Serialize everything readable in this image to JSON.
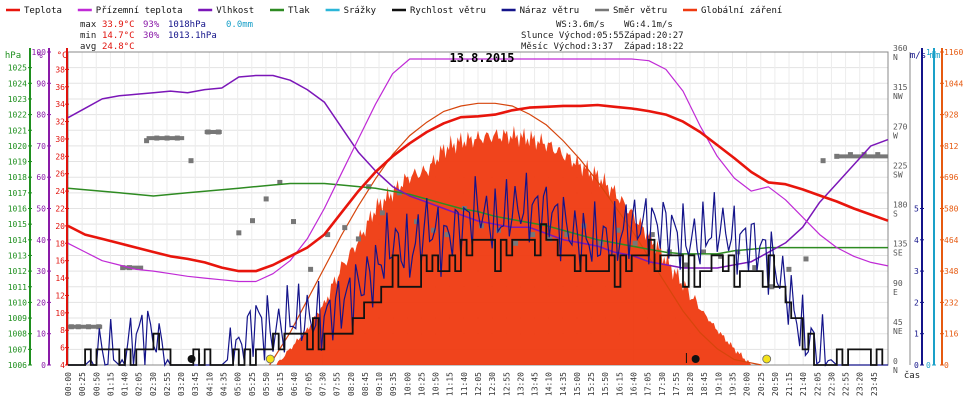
{
  "colors": {
    "temp": "#e8150c",
    "feels": "#c02ad6",
    "humidity": "#7b16b8",
    "pressure": "#2e8b22",
    "precip": "#2bb6d8",
    "wind": "#111111",
    "gust": "#14148a",
    "direction": "#777777",
    "radiation": "#ef3a10",
    "hpa_axis": "#1e8f1e",
    "pct_axis": "#8a1aa8",
    "temp_axis": "#e0120c",
    "ms_axis": "#14148a",
    "mm_axis": "#1aa0c8",
    "rad_axis": "#e65a10"
  },
  "legend": [
    {
      "label": "Teplota",
      "color_key": "temp",
      "kind": "line"
    },
    {
      "label": "Přízemní teplota",
      "color_key": "feels",
      "kind": "line"
    },
    {
      "label": "Vlhkost",
      "color_key": "humidity",
      "kind": "line"
    },
    {
      "label": "Tlak",
      "color_key": "pressure",
      "kind": "line"
    },
    {
      "label": "Srážky",
      "color_key": "precip",
      "kind": "line"
    },
    {
      "label": "Rychlost větru",
      "color_key": "wind",
      "kind": "line"
    },
    {
      "label": "Náraz větru",
      "color_key": "gust",
      "kind": "line"
    },
    {
      "label": "Směr větru",
      "color_key": "direction",
      "kind": "line"
    },
    {
      "label": "Globální záření",
      "color_key": "radiation",
      "kind": "line"
    }
  ],
  "stats": {
    "max_label": "max",
    "max_temp": "33.9°C",
    "max_hum": "93%",
    "max_press": "1018hPa",
    "precip": "0.0mm",
    "min_label": "min",
    "min_temp": "14.7°C",
    "min_hum": "30%",
    "min_press": "1013.1hPa",
    "avg_label": "avg",
    "avg_temp": "24.8°C"
  },
  "sun": {
    "ws": "WS:3.6m/s",
    "wg": "WG:4.1m/s",
    "sun_rise": "Slunce Východ:05:55",
    "sun_set": "Západ:20:27",
    "moon_rise": "Měsíc Východ:3:37",
    "moon_set": "Západ:18:22"
  },
  "axis_units": {
    "hpa": "hPa",
    "pct": "%",
    "temp": "°C",
    "ms": "m/s",
    "mm": "mm",
    "time": "čas"
  },
  "chart_data": {
    "type": "line",
    "title": "13.8.2015",
    "x_unit": "hours of day",
    "xlim": [
      0,
      24
    ],
    "grid": true,
    "axes": {
      "hpa": {
        "ticks": [
          1006,
          1007,
          1008,
          1009,
          1010,
          1011,
          1012,
          1013,
          1014,
          1015,
          1016,
          1017,
          1018,
          1019,
          1020,
          1021,
          1022,
          1023,
          1024,
          1025
        ],
        "range": [
          1006,
          1026
        ]
      },
      "pct": {
        "ticks": [
          0,
          10,
          20,
          30,
          40,
          50,
          60,
          70,
          80,
          90,
          100
        ],
        "range": [
          0,
          100
        ]
      },
      "temp": {
        "ticks": [
          4,
          6,
          8,
          10,
          12,
          14,
          16,
          18,
          20,
          22,
          24,
          26,
          28,
          30,
          32,
          34,
          36,
          38
        ],
        "range": [
          4,
          40
        ]
      },
      "wind_ms": {
        "ticks": [
          0,
          1,
          2,
          3,
          4,
          5
        ],
        "range": [
          0,
          10
        ]
      },
      "precip_mm": {
        "ticks": [
          0,
          1
        ],
        "range": [
          0,
          1
        ]
      },
      "direction": {
        "ticks": [
          {
            "v": "0",
            "d": "N"
          },
          {
            "v": "45",
            "d": "NE"
          },
          {
            "v": "90",
            "d": "E"
          },
          {
            "v": "135",
            "d": "SE"
          },
          {
            "v": "180",
            "d": "S"
          },
          {
            "v": "225",
            "d": "SW"
          },
          {
            "v": "270",
            "d": "W"
          },
          {
            "v": "315",
            "d": "NW"
          },
          {
            "v": "360",
            "d": "N"
          }
        ],
        "range": [
          0,
          360
        ]
      },
      "radiation": {
        "ticks": [
          0,
          116,
          232,
          348,
          464,
          580,
          696,
          812,
          928,
          1044,
          1160
        ],
        "range": [
          0,
          1160
        ]
      }
    },
    "time_labels": [
      "00:00",
      "00:25",
      "00:50",
      "01:15",
      "01:40",
      "02:05",
      "02:30",
      "02:55",
      "03:20",
      "03:45",
      "04:10",
      "04:35",
      "05:00",
      "05:25",
      "05:50",
      "06:15",
      "06:40",
      "07:05",
      "07:30",
      "07:55",
      "08:20",
      "08:45",
      "09:10",
      "09:35",
      "10:00",
      "10:25",
      "10:50",
      "11:15",
      "11:40",
      "12:05",
      "12:30",
      "12:55",
      "13:20",
      "13:45",
      "14:10",
      "14:35",
      "15:00",
      "15:25",
      "15:50",
      "16:15",
      "16:40",
      "17:05",
      "17:30",
      "17:55",
      "18:20",
      "18:45",
      "19:10",
      "19:35",
      "20:00",
      "20:25",
      "20:50",
      "21:15",
      "21:40",
      "22:05",
      "22:30",
      "22:55",
      "23:20",
      "23:45"
    ],
    "series": [
      {
        "name": "Teplota",
        "axis": "temp",
        "color_key": "temp",
        "width": 2.6,
        "x": [
          0,
          0.5,
          1,
          1.5,
          2,
          2.5,
          3,
          3.5,
          4,
          4.5,
          5,
          5.5,
          6,
          6.5,
          7,
          7.5,
          8,
          8.5,
          9,
          9.5,
          10,
          10.5,
          11,
          11.5,
          12,
          12.5,
          13,
          13.5,
          14,
          14.5,
          15,
          15.5,
          16,
          16.5,
          17,
          17.5,
          18,
          18.5,
          19,
          19.5,
          20,
          20.5,
          21,
          21.5,
          22,
          22.5,
          23,
          23.5,
          24
        ],
        "y": [
          20,
          19,
          18.5,
          18,
          17.5,
          17,
          16.5,
          16.2,
          15.8,
          15.2,
          14.8,
          14.8,
          15.5,
          16.5,
          17.5,
          19,
          21.5,
          24,
          26.2,
          28,
          29.5,
          30.8,
          31.8,
          32.5,
          32.6,
          32.8,
          33.3,
          33.6,
          33.7,
          33.8,
          33.8,
          33.9,
          33.7,
          33.5,
          33.2,
          32.8,
          32,
          30.8,
          29.3,
          27.8,
          26.2,
          25,
          24.8,
          24.2,
          23.5,
          22.8,
          22,
          21.3,
          20.6
        ]
      },
      {
        "name": "Přízemní teplota",
        "axis": "temp",
        "color_key": "feels",
        "width": 1.2,
        "x": [
          0,
          0.5,
          1,
          1.5,
          2,
          2.5,
          3,
          3.5,
          4,
          4.5,
          5,
          5.5,
          6,
          6.5,
          7,
          7.5,
          8,
          8.5,
          9,
          9.5,
          10,
          10.5,
          11,
          11.5,
          12,
          12.5,
          13,
          13.5,
          14,
          14.5,
          15,
          15.5,
          16,
          16.5,
          17,
          17.5,
          18,
          18.5,
          19,
          19.5,
          20,
          20.5,
          21,
          21.5,
          22,
          22.5,
          23,
          23.5,
          24
        ],
        "y": [
          18,
          17,
          16,
          15.5,
          15,
          14.8,
          14.5,
          14.2,
          14,
          13.8,
          13.6,
          13.6,
          14.5,
          16,
          18.5,
          22,
          26,
          30,
          34,
          37.5,
          39.2,
          39.2,
          39.2,
          39.2,
          39.2,
          39.2,
          39.2,
          39.2,
          39.2,
          39.2,
          39.2,
          39.2,
          39.2,
          39.2,
          39,
          38,
          35.5,
          31.5,
          28,
          25.5,
          24,
          24.5,
          23,
          21,
          19,
          17.5,
          16.5,
          15.8,
          15.4
        ]
      },
      {
        "name": "Vlhkost",
        "axis": "pct",
        "color_key": "humidity",
        "width": 1.5,
        "x": [
          0,
          0.5,
          1,
          1.5,
          2,
          2.5,
          3,
          3.5,
          4,
          4.5,
          5,
          5.5,
          6,
          6.5,
          7,
          7.5,
          8,
          8.5,
          9,
          9.5,
          10,
          10.5,
          11,
          11.5,
          12,
          12.5,
          13,
          13.5,
          14,
          14.5,
          15,
          15.5,
          16,
          16.5,
          17,
          17.5,
          18,
          18.5,
          19,
          19.5,
          20,
          20.5,
          21,
          21.5,
          22,
          22.5,
          23,
          23.5,
          24
        ],
        "y": [
          79,
          82,
          85,
          86,
          86.5,
          87,
          87.5,
          87,
          88,
          88.5,
          92,
          92.5,
          92.5,
          91,
          88,
          84,
          76,
          68,
          62,
          57,
          54,
          52,
          50,
          48,
          46,
          45,
          44,
          44,
          42,
          40,
          39,
          38,
          36,
          35,
          33,
          32,
          31,
          31,
          31,
          32,
          33,
          36,
          39,
          44,
          52,
          58,
          64,
          70,
          72
        ]
      },
      {
        "name": "Tlak",
        "axis": "hpa",
        "color_key": "pressure",
        "width": 1.5,
        "x": [
          0,
          0.5,
          1,
          1.5,
          2,
          2.5,
          3,
          3.5,
          4,
          4.5,
          5,
          5.5,
          6,
          6.5,
          7,
          7.5,
          8,
          8.5,
          9,
          9.5,
          10,
          10.5,
          11,
          11.5,
          12,
          12.5,
          13,
          13.5,
          14,
          14.5,
          15,
          15.5,
          16,
          16.5,
          17,
          17.5,
          18,
          18.5,
          19,
          19.5,
          20,
          20.5,
          21,
          21.5,
          22,
          22.5,
          23,
          23.5,
          24
        ],
        "y": [
          1017.3,
          1017.2,
          1017.1,
          1017.0,
          1016.9,
          1016.8,
          1016.9,
          1017.0,
          1017.1,
          1017.2,
          1017.3,
          1017.4,
          1017.5,
          1017.6,
          1017.6,
          1017.6,
          1017.5,
          1017.4,
          1017.3,
          1017.1,
          1016.9,
          1016.6,
          1016.3,
          1016.0,
          1015.8,
          1015.5,
          1015.3,
          1015.1,
          1014.9,
          1014.6,
          1014.3,
          1014.0,
          1013.8,
          1013.6,
          1013.4,
          1013.2,
          1013.1,
          1013.1,
          1013.1,
          1013.3,
          1013.4,
          1013.5,
          1013.5,
          1013.5,
          1013.5,
          1013.5,
          1013.5,
          1013.5,
          1013.5
        ]
      },
      {
        "name": "Globální záření",
        "axis": "radiation",
        "color_key": "radiation",
        "kind": "area",
        "x": [
          6.1,
          6.5,
          7,
          7.5,
          8,
          8.5,
          9,
          9.5,
          10,
          10.5,
          11,
          11.5,
          12,
          12.5,
          13,
          13.5,
          14,
          14.5,
          15,
          15.5,
          16,
          16.5,
          17,
          17.5,
          18,
          18.5,
          19,
          19.5,
          20
        ],
        "y": [
          0,
          60,
          130,
          230,
          360,
          460,
          580,
          640,
          700,
          720,
          800,
          830,
          840,
          850,
          850,
          840,
          820,
          780,
          740,
          700,
          640,
          560,
          480,
          390,
          300,
          210,
          130,
          60,
          0
        ]
      },
      {
        "name": "Max záření",
        "axis": "radiation",
        "color_key": "radiation",
        "kind": "curve",
        "x": [
          5.9,
          6.5,
          7,
          7.5,
          8,
          8.5,
          9,
          9.5,
          10,
          10.5,
          11,
          11.5,
          12,
          12.5,
          13,
          13.5,
          14,
          14.5,
          15,
          15.5,
          16,
          16.5,
          17,
          17.5,
          18,
          18.5,
          19,
          19.5,
          20.3
        ],
        "y": [
          0,
          120,
          240,
          360,
          480,
          590,
          690,
          780,
          850,
          900,
          940,
          960,
          970,
          970,
          960,
          930,
          890,
          830,
          760,
          680,
          590,
          500,
          400,
          300,
          200,
          120,
          60,
          20,
          0
        ]
      },
      {
        "name": "Rychlost větru",
        "axis": "wind_ms",
        "color_key": "wind",
        "kind": "step",
        "x": [
          0,
          0.5,
          1,
          1.5,
          2,
          2.5,
          3,
          3.5,
          4,
          4.5,
          5,
          5.5,
          6,
          6.5,
          7,
          7.5,
          8,
          8.5,
          9,
          9.5,
          10,
          10.5,
          11,
          11.5,
          12,
          12.5,
          13,
          13.5,
          14,
          14.5,
          15,
          15.5,
          16,
          16.5,
          17,
          17.5,
          18,
          18.5,
          19,
          19.5,
          20,
          20.5,
          21,
          21.5,
          22,
          22.5,
          23,
          23.5,
          24
        ],
        "y": [
          0,
          0,
          0.5,
          0,
          0.5,
          1,
          0,
          0,
          0,
          0,
          0,
          0.5,
          0.5,
          1,
          1,
          1,
          1,
          1.5,
          2,
          3,
          2.5,
          3.5,
          3,
          3.5,
          4,
          3.5,
          4,
          4,
          4,
          3.5,
          3,
          3,
          3,
          3.5,
          3.5,
          3.5,
          3,
          3,
          3.5,
          3,
          3,
          3,
          2,
          1,
          0,
          0,
          0.5,
          0,
          0
        ]
      },
      {
        "name": "Náraz větru",
        "axis": "wind_ms",
        "color_key": "gust",
        "kind": "noisy",
        "x": [
          0,
          0.5,
          1,
          1.5,
          2,
          2.5,
          3,
          3.5,
          4,
          4.5,
          5,
          5.5,
          6,
          6.5,
          7,
          7.5,
          8,
          8.5,
          9,
          9.5,
          10,
          10.5,
          11,
          11.5,
          12,
          12.5,
          13,
          13.5,
          14,
          14.5,
          15,
          15.5,
          16,
          16.5,
          17,
          17.5,
          18,
          18.5,
          19,
          19.5,
          20,
          20.5,
          21,
          21.5,
          22,
          22.5,
          23,
          23.5,
          24
        ],
        "y": [
          0,
          0,
          0.5,
          0,
          1,
          1,
          0,
          0,
          0,
          0,
          0.5,
          1.5,
          1,
          1.5,
          1.5,
          1.5,
          2,
          2.5,
          3,
          4,
          3.5,
          4.5,
          4,
          4.5,
          5,
          4.5,
          5,
          5,
          5,
          4.5,
          4,
          4,
          4,
          4.5,
          4.5,
          4.5,
          4,
          4,
          4.5,
          4,
          4,
          3.5,
          2.5,
          1,
          0.5,
          0,
          0,
          0,
          0
        ]
      },
      {
        "name": "Směr větru",
        "axis": "direction",
        "color_key": "direction",
        "kind": "dots",
        "x": [
          0.1,
          0.3,
          0.6,
          0.9,
          1.6,
          1.8,
          2.3,
          2.6,
          2.9,
          3.2,
          3.6,
          4.1,
          4.4,
          5.0,
          5.4,
          5.8,
          6.2,
          6.6,
          7.1,
          7.6,
          8.1,
          8.5,
          8.8,
          9.2,
          9.7,
          10.2,
          10.7,
          11.1,
          11.6,
          12.1,
          12.6,
          13.1,
          13.6,
          14.1,
          14.6,
          15.1,
          15.6,
          16.1,
          16.6,
          17.1,
          17.6,
          18.1,
          18.6,
          19.1,
          19.6,
          20.1,
          20.6,
          21.1,
          21.6,
          22.1,
          22.5,
          22.9,
          23.3,
          23.7
        ],
        "y": [
          44,
          44,
          44,
          44,
          112,
          112,
          258,
          261,
          261,
          261,
          235,
          268,
          268,
          152,
          166,
          191,
          210,
          165,
          110,
          150,
          158,
          145,
          205,
          175,
          198,
          165,
          155,
          150,
          180,
          160,
          155,
          140,
          150,
          145,
          150,
          160,
          140,
          155,
          140,
          150,
          130,
          115,
          130,
          125,
          130,
          112,
          90,
          110,
          122,
          235,
          240,
          242,
          242,
          242
        ]
      }
    ]
  }
}
